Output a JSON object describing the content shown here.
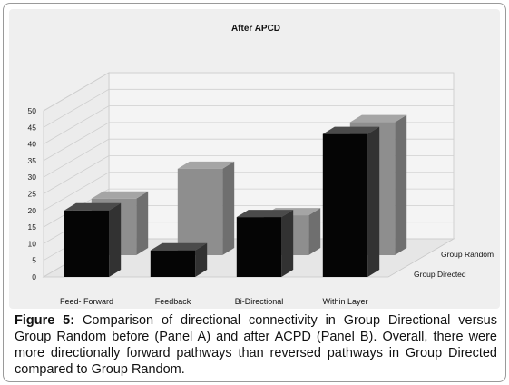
{
  "figure": {
    "caption_label": "Figure 5:",
    "caption_text": " Comparison of directional connectivity in Group Directional versus Group Random before (Panel A) and after ACPD (Panel B). Overall, there were more directionally forward pathways than reversed pathways in Group Directed compared to Group Random."
  },
  "colors": {
    "front_series": "#050505",
    "back_series": "#8e8e8e",
    "background": "#efefef"
  },
  "chart_data": {
    "type": "bar",
    "title": "After APCD",
    "categories": [
      "Feed- Forward",
      "Feedback",
      "Bi-Directional",
      "Within Layer"
    ],
    "series": [
      {
        "name": "Group Directed",
        "values": [
          20,
          8,
          18,
          43
        ]
      },
      {
        "name": "Group Random",
        "values": [
          17,
          26,
          12,
          40
        ]
      }
    ],
    "yticks": [
      0,
      5,
      10,
      15,
      20,
      25,
      30,
      35,
      40,
      45,
      50
    ],
    "ylim": [
      0,
      50
    ],
    "grid": true,
    "legend": "depth-axis"
  }
}
